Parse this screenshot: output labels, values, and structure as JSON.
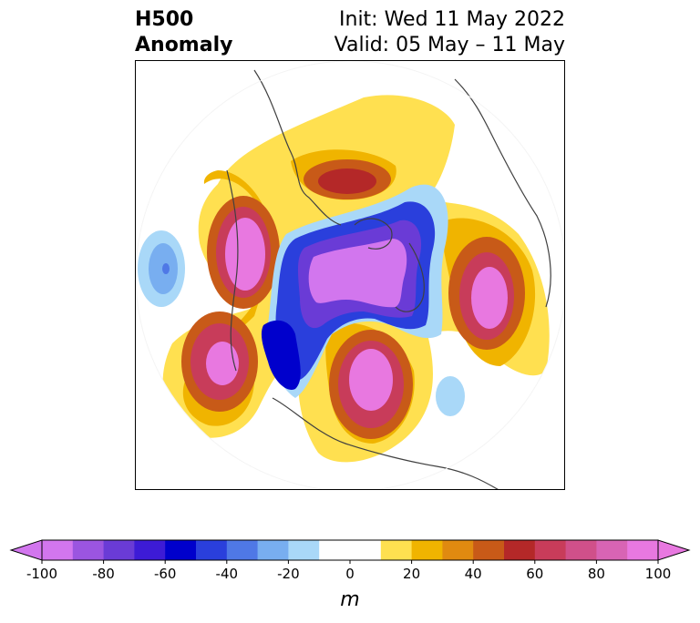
{
  "title": {
    "line1": "H500",
    "line2": "Anomaly",
    "init": "Init: Wed 11 May 2022",
    "valid": "Valid: 05 May – 11 May"
  },
  "colorbar": {
    "unit": "m",
    "min": -100,
    "max": 100,
    "step": 10,
    "tick_labels": [
      "-100",
      "-80",
      "-60",
      "-40",
      "-20",
      "0",
      "20",
      "40",
      "60",
      "80",
      "100"
    ],
    "colors": [
      "#d276ee",
      "#9b55e0",
      "#6a3bd6",
      "#3d1bd6",
      "#0000cc",
      "#2a3fdc",
      "#4f78e6",
      "#78aef0",
      "#a9d8f8",
      "#ffffff",
      "#ffffff",
      "#ffe050",
      "#f0b400",
      "#e08a10",
      "#c85a18",
      "#b42828",
      "#c83c5a",
      "#d0508a",
      "#d864b4",
      "#e878e0"
    ],
    "extend_low_color": "#d276ee",
    "extend_high_color": "#e878e0"
  },
  "map": {
    "projection": "north-polar-stereographic",
    "variable": "500 hPa geopotential height anomaly",
    "coastline_color": "#404040"
  }
}
